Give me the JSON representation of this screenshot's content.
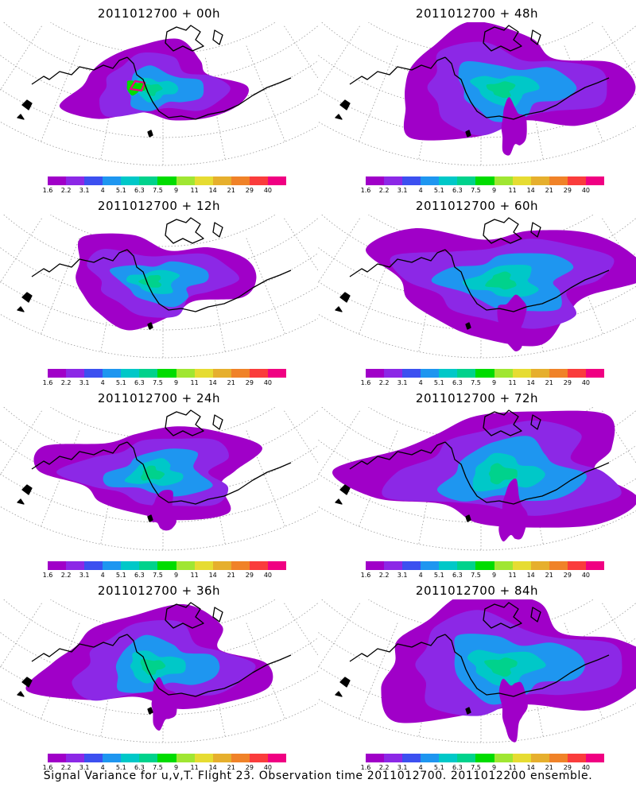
{
  "caption": "Signal Variance for u,v,T. Flight 23. Observation time 2011012700. 2011012200 ensemble.",
  "colorbar": {
    "labels": [
      "1.6",
      "2.2",
      "3.1",
      "4",
      "5.1",
      "6.3",
      "7.5",
      "9",
      "11",
      "14",
      "21",
      "29",
      "40"
    ],
    "colors": [
      "#a000c8",
      "#8c28e6",
      "#3c50f0",
      "#1e96f0",
      "#00c8c8",
      "#00d28c",
      "#00dc00",
      "#a0e632",
      "#e6dc32",
      "#e6af2d",
      "#f08228",
      "#fa3c3c",
      "#f00082"
    ]
  },
  "panels": [
    {
      "title": "2011012700 + 00h",
      "lead_hours": 0
    },
    {
      "title": "2011012700 + 48h",
      "lead_hours": 48
    },
    {
      "title": "2011012700 + 12h",
      "lead_hours": 12
    },
    {
      "title": "2011012700 + 60h",
      "lead_hours": 60
    },
    {
      "title": "2011012700 + 24h",
      "lead_hours": 24
    },
    {
      "title": "2011012700 + 72h",
      "lead_hours": 72
    },
    {
      "title": "2011012700 + 36h",
      "lead_hours": 36
    },
    {
      "title": "2011012700 + 84h",
      "lead_hours": 84
    }
  ]
}
